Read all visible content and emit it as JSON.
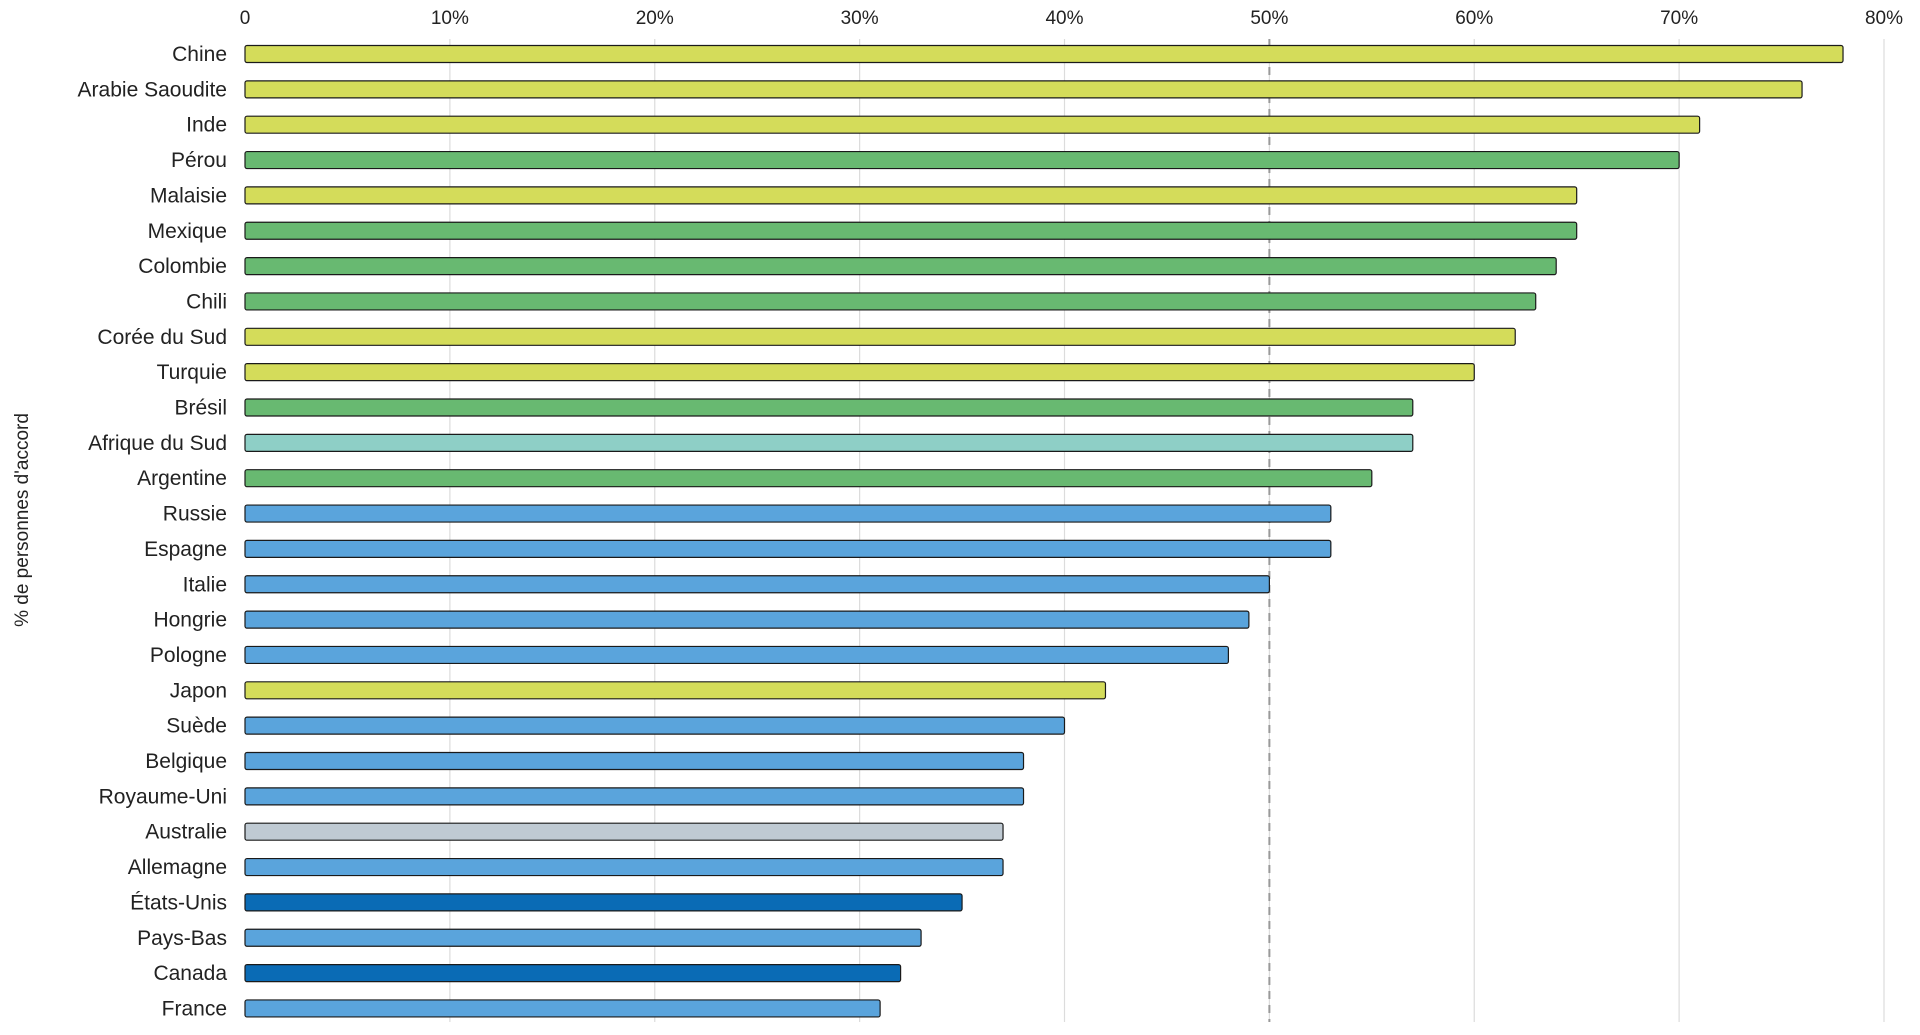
{
  "chart_data": {
    "type": "bar",
    "orientation": "horizontal",
    "ylabel": "% de personnes d'accord",
    "xlim": [
      0,
      80
    ],
    "xticks": [
      0,
      10,
      20,
      30,
      40,
      50,
      60,
      70,
      80
    ],
    "xtick_labels": [
      "0",
      "10%",
      "20%",
      "30%",
      "40%",
      "50%",
      "60%",
      "70%",
      "80%"
    ],
    "xaxis_position": "top",
    "reference_line": 50,
    "grid": true,
    "categories": [
      "Chine",
      "Arabie Saoudite",
      "Inde",
      "Pérou",
      "Malaisie",
      "Mexique",
      "Colombie",
      "Chili",
      "Corée du Sud",
      "Turquie",
      "Brésil",
      "Afrique du Sud",
      "Argentine",
      "Russie",
      "Espagne",
      "Italie",
      "Hongrie",
      "Pologne",
      "Japon",
      "Suède",
      "Belgique",
      "Royaume-Uni",
      "Australie",
      "Allemagne",
      "États-Unis",
      "Pays-Bas",
      "Canada",
      "France"
    ],
    "values": [
      78,
      76,
      71,
      70,
      65,
      65,
      64,
      63,
      62,
      60,
      57,
      57,
      55,
      53,
      53,
      50,
      49,
      48,
      42,
      40,
      38,
      38,
      37,
      37,
      35,
      33,
      32,
      31
    ],
    "colors": [
      "#d4dc5a",
      "#d4dc5a",
      "#d4dc5a",
      "#68b971",
      "#d4dc5a",
      "#68b971",
      "#68b971",
      "#68b971",
      "#d4dc5a",
      "#d4dc5a",
      "#68b971",
      "#8ecfc6",
      "#68b971",
      "#5aa4dc",
      "#5aa4dc",
      "#5aa4dc",
      "#5aa4dc",
      "#5aa4dc",
      "#d4dc5a",
      "#5aa4dc",
      "#5aa4dc",
      "#5aa4dc",
      "#bfcad3",
      "#5aa4dc",
      "#0a6bb5",
      "#5aa4dc",
      "#0a6bb5",
      "#5aa4dc"
    ]
  }
}
